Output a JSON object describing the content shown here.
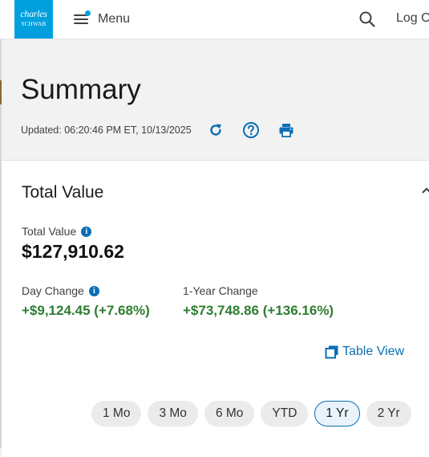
{
  "header": {
    "logo_line1": "charles",
    "logo_line2": "SCHWAB",
    "menu_label": "Menu",
    "login_label": "Log Out",
    "brand_color": "#00a0df"
  },
  "summary": {
    "title": "Summary",
    "updated": "Updated: 06:20:46 PM ET, 10/13/2025"
  },
  "card": {
    "title": "Total Value",
    "total_value_label": "Total Value",
    "total_value": "$127,910.62",
    "day_change_label": "Day Change",
    "day_change": "+$9,124.45 (+7.68%)",
    "year_change_label": "1-Year Change",
    "year_change": "+$73,748.86 (+136.16%)",
    "table_view_label": "Table View",
    "positive_color": "#2e7d32",
    "link_color": "#0a6fb5"
  },
  "periods": {
    "items": [
      "1 Mo",
      "3 Mo",
      "6 Mo",
      "YTD",
      "1 Yr",
      "2 Yr"
    ],
    "selected": "1 Yr"
  },
  "icons": {
    "info": "i"
  }
}
